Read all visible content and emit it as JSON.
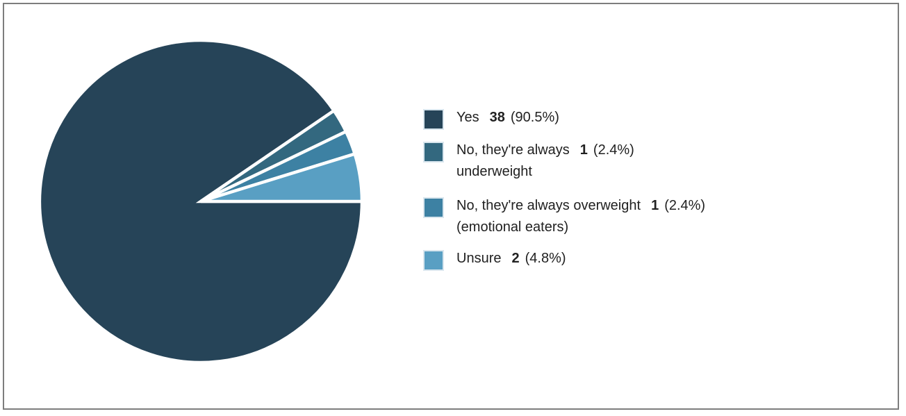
{
  "page": {
    "background": "#ffffff",
    "frame_border_color": "#7d7d7d",
    "text_color": "#212121"
  },
  "chart_data": {
    "type": "pie",
    "title": "",
    "legend_position": "right",
    "start_angle_deg": 0,
    "direction": "clockwise",
    "separator_color": "#ffffff",
    "slices": [
      {
        "label": "Yes",
        "count": 38,
        "pct": 90.5,
        "color": "#264458"
      },
      {
        "label": "No, they're always underweight",
        "count": 1,
        "pct": 2.4,
        "color": "#33687f"
      },
      {
        "label": "No, they're always overweight (emotional eaters)",
        "count": 1,
        "pct": 2.4,
        "color": "#3d81a3"
      },
      {
        "label": "Unsure",
        "count": 2,
        "pct": 4.8,
        "color": "#599fc3"
      }
    ],
    "legend": [
      {
        "line1": "Yes",
        "count": "38",
        "pct": "(90.5%)",
        "line2": ""
      },
      {
        "line1": "No, they're always",
        "count": "1",
        "pct": "(2.4%)",
        "line2": "underweight"
      },
      {
        "line1": "No, they're always overweight",
        "count": "1",
        "pct": "(2.4%)",
        "line2": "(emotional eaters)"
      },
      {
        "line1": "Unsure",
        "count": "2",
        "pct": "(4.8%)",
        "line2": ""
      }
    ]
  }
}
